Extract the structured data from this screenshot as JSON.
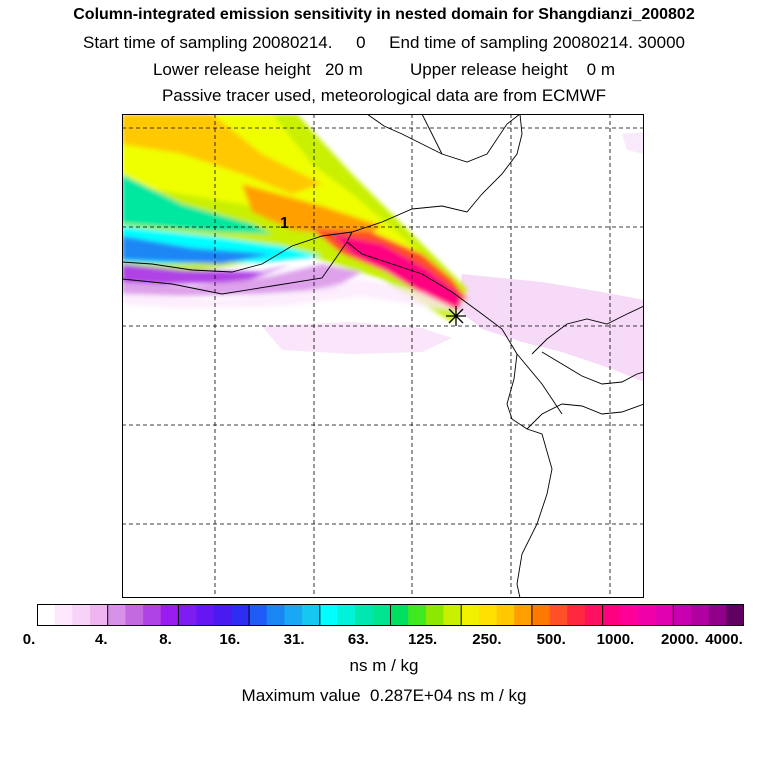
{
  "header": {
    "title": "Column-integrated emission sensitivity in nested domain for Shangdianzi_200802",
    "sampling_line": "Start time of sampling 20080214.     0     End time of sampling 20080214. 30000",
    "release_line": "Lower release height   20 m          Upper release height    0 m",
    "tracer_line": "Passive tracer used, meteorological data are from ECMWF"
  },
  "map": {
    "point_label": "1",
    "receptor_marker": "star-icon"
  },
  "colorbar": {
    "colors": [
      "#ffffff",
      "#fde8fd",
      "#f8d2f8",
      "#f0b4f0",
      "#d891e8",
      "#c46ae0",
      "#b043e6",
      "#9a1cf0",
      "#7f1cf2",
      "#6516f2",
      "#4a1af0",
      "#2e2ef2",
      "#1e5cf5",
      "#1a86f5",
      "#1aa8f5",
      "#14c8f2",
      "#00ffff",
      "#00f2d8",
      "#00e8b0",
      "#00e490",
      "#00e060",
      "#40e820",
      "#8ce800",
      "#c8f000",
      "#f0f000",
      "#ffe000",
      "#ffc800",
      "#ffa000",
      "#ff7800",
      "#ff5028",
      "#ff2840",
      "#ff1060",
      "#ff0080",
      "#ff0098",
      "#f000a8",
      "#e000b0",
      "#c800b0",
      "#b000a0",
      "#900088",
      "#600060"
    ],
    "major_every": 4,
    "ticks": [
      "0.",
      "4.",
      "8.",
      "16.",
      "31.",
      "63.",
      "125.",
      "250.",
      "500.",
      "1000.",
      "2000.",
      "4000."
    ]
  },
  "units": "ns m / kg",
  "max_value": "Maximum value  0.287E+04 ns m / kg"
}
